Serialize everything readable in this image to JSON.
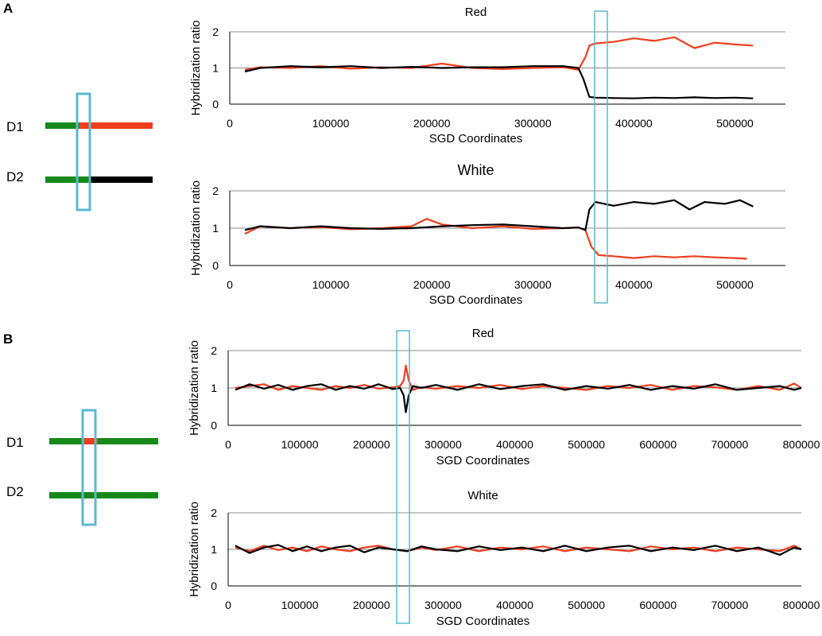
{
  "colors": {
    "red": "#ee3d1f",
    "black": "#000000",
    "green": "#17891b",
    "cyan": "#5bb8d0",
    "grid": "#8c8c8c",
    "axis": "#000000"
  },
  "panels": [
    {
      "letter": "A",
      "diagram": {
        "d1_label": "D1",
        "d2_label": "D2",
        "d1_segments": [
          {
            "color": "green",
            "from": 0.0,
            "to": 0.32
          },
          {
            "color": "red",
            "from": 0.32,
            "to": 1.0
          }
        ],
        "d2_segments": [
          {
            "color": "green",
            "from": 0.0,
            "to": 0.42
          },
          {
            "color": "black",
            "from": 0.42,
            "to": 1.0
          }
        ]
      }
    },
    {
      "letter": "B",
      "diagram": {
        "d1_label": "D1",
        "d2_label": "D2",
        "d1_segments": [
          {
            "color": "green",
            "from": 0.0,
            "to": 0.32
          },
          {
            "color": "red",
            "from": 0.32,
            "to": 0.44
          },
          {
            "color": "green",
            "from": 0.44,
            "to": 1.0
          }
        ],
        "d2_segments": [
          {
            "color": "green",
            "from": 0.0,
            "to": 1.0
          }
        ]
      }
    }
  ],
  "chart_data": [
    {
      "id": "A-red",
      "type": "line",
      "title": "Red",
      "xlabel": "SGD Coordinates",
      "ylabel": "Hybridization ratio",
      "xlim": [
        0,
        550000
      ],
      "ylim": [
        0,
        2
      ],
      "xticks": [
        0,
        100000,
        200000,
        300000,
        400000,
        500000
      ],
      "yticks": [
        0,
        1,
        2
      ],
      "grid": true,
      "breakpoint": 355000,
      "series": [
        {
          "color": "red",
          "x": [
            15000,
            30000,
            60000,
            90000,
            120000,
            150000,
            180000,
            210000,
            240000,
            270000,
            300000,
            330000,
            345000,
            352000,
            356000,
            362000,
            380000,
            400000,
            420000,
            440000,
            460000,
            480000,
            500000,
            518000
          ],
          "y": [
            0.95,
            1.02,
            1.0,
            1.05,
            0.98,
            1.02,
            1.0,
            1.12,
            1.0,
            0.97,
            1.0,
            1.02,
            0.95,
            1.3,
            1.62,
            1.68,
            1.72,
            1.82,
            1.75,
            1.85,
            1.55,
            1.7,
            1.65,
            1.62
          ]
        },
        {
          "color": "black",
          "x": [
            15000,
            30000,
            60000,
            90000,
            120000,
            150000,
            180000,
            210000,
            240000,
            270000,
            300000,
            330000,
            345000,
            350000,
            356000,
            362000,
            380000,
            400000,
            420000,
            440000,
            460000,
            480000,
            500000,
            518000
          ],
          "y": [
            0.9,
            1.0,
            1.05,
            1.02,
            1.05,
            1.0,
            1.03,
            1.0,
            1.02,
            1.02,
            1.05,
            1.05,
            1.0,
            0.7,
            0.2,
            0.18,
            0.17,
            0.16,
            0.18,
            0.17,
            0.19,
            0.17,
            0.18,
            0.16
          ]
        }
      ]
    },
    {
      "id": "A-white",
      "type": "line",
      "title": "White",
      "xlabel": "SGD Coordinates",
      "ylabel": "Hybridization ratio",
      "xlim": [
        0,
        550000
      ],
      "ylim": [
        0,
        2
      ],
      "xticks": [
        0,
        100000,
        200000,
        300000,
        400000,
        500000
      ],
      "yticks": [
        0,
        1,
        2
      ],
      "grid": true,
      "breakpoint": 355000,
      "series": [
        {
          "color": "red",
          "x": [
            15000,
            30000,
            60000,
            90000,
            120000,
            150000,
            180000,
            195000,
            210000,
            240000,
            270000,
            300000,
            330000,
            345000,
            352000,
            358000,
            365000,
            380000,
            400000,
            420000,
            440000,
            460000,
            480000,
            500000,
            512000
          ],
          "y": [
            0.85,
            1.05,
            1.0,
            1.03,
            0.97,
            1.0,
            1.05,
            1.25,
            1.1,
            1.0,
            1.05,
            0.98,
            1.0,
            1.02,
            0.95,
            0.5,
            0.28,
            0.25,
            0.2,
            0.25,
            0.22,
            0.25,
            0.22,
            0.2,
            0.18
          ]
        },
        {
          "color": "black",
          "x": [
            15000,
            30000,
            60000,
            90000,
            120000,
            150000,
            180000,
            210000,
            240000,
            270000,
            300000,
            330000,
            345000,
            352000,
            356000,
            362000,
            380000,
            400000,
            420000,
            440000,
            455000,
            470000,
            490000,
            505000,
            518000
          ],
          "y": [
            0.95,
            1.05,
            1.0,
            1.05,
            1.0,
            0.98,
            1.0,
            1.05,
            1.08,
            1.1,
            1.05,
            1.0,
            1.02,
            0.95,
            1.5,
            1.7,
            1.6,
            1.7,
            1.65,
            1.75,
            1.5,
            1.7,
            1.65,
            1.75,
            1.58
          ]
        }
      ]
    },
    {
      "id": "B-red",
      "type": "line",
      "title": "Red",
      "xlabel": "SGD Coordinates",
      "ylabel": "Hybridization ratio",
      "xlim": [
        0,
        800000
      ],
      "ylim": [
        0,
        2
      ],
      "xticks": [
        0,
        100000,
        200000,
        300000,
        400000,
        500000,
        600000,
        700000,
        800000
      ],
      "yticks": [
        0,
        1,
        2
      ],
      "grid": true,
      "breakpoint": 250000,
      "series": [
        {
          "color": "red",
          "x": [
            10000,
            30000,
            50000,
            70000,
            90000,
            110000,
            130000,
            150000,
            170000,
            190000,
            210000,
            230000,
            240000,
            245000,
            248000,
            252000,
            258000,
            270000,
            290000,
            320000,
            350000,
            380000,
            410000,
            440000,
            470000,
            500000,
            530000,
            560000,
            590000,
            620000,
            650000,
            680000,
            710000,
            740000,
            770000,
            790000,
            800000
          ],
          "y": [
            1.0,
            1.05,
            1.1,
            0.95,
            1.05,
            1.0,
            0.95,
            1.05,
            1.0,
            1.08,
            0.98,
            1.02,
            1.05,
            1.2,
            1.6,
            1.2,
            0.95,
            1.02,
            0.98,
            1.05,
            1.0,
            1.08,
            0.97,
            1.05,
            1.0,
            0.95,
            1.05,
            1.0,
            1.08,
            0.95,
            1.05,
            1.02,
            0.95,
            1.05,
            0.95,
            1.12,
            1.0
          ]
        },
        {
          "color": "black",
          "x": [
            10000,
            30000,
            50000,
            70000,
            90000,
            110000,
            130000,
            150000,
            170000,
            190000,
            210000,
            230000,
            240000,
            245000,
            248000,
            252000,
            258000,
            270000,
            290000,
            320000,
            350000,
            380000,
            410000,
            440000,
            470000,
            500000,
            530000,
            560000,
            590000,
            620000,
            650000,
            680000,
            710000,
            740000,
            770000,
            790000,
            800000
          ],
          "y": [
            0.95,
            1.1,
            0.98,
            1.08,
            0.95,
            1.05,
            1.1,
            0.95,
            1.05,
            0.98,
            1.1,
            0.97,
            1.0,
            0.8,
            0.35,
            0.8,
            1.05,
            1.0,
            1.08,
            0.95,
            1.1,
            0.97,
            1.05,
            1.1,
            0.95,
            1.05,
            0.98,
            1.08,
            0.95,
            1.05,
            0.98,
            1.1,
            0.95,
            1.0,
            1.05,
            0.95,
            1.0
          ]
        }
      ]
    },
    {
      "id": "B-white",
      "type": "line",
      "title": "White",
      "xlabel": "SGD Coordinates",
      "ylabel": "Hybridization ratio",
      "xlim": [
        0,
        800000
      ],
      "ylim": [
        0,
        2
      ],
      "xticks": [
        0,
        100000,
        200000,
        300000,
        400000,
        500000,
        600000,
        700000,
        800000
      ],
      "yticks": [
        0,
        1,
        2
      ],
      "grid": true,
      "breakpoint": 250000,
      "series": [
        {
          "color": "red",
          "x": [
            10000,
            30000,
            50000,
            70000,
            90000,
            110000,
            130000,
            150000,
            170000,
            190000,
            210000,
            230000,
            250000,
            270000,
            290000,
            320000,
            350000,
            380000,
            410000,
            440000,
            470000,
            500000,
            530000,
            560000,
            590000,
            620000,
            650000,
            680000,
            710000,
            740000,
            770000,
            790000,
            800000
          ],
          "y": [
            1.05,
            0.95,
            1.1,
            0.98,
            1.05,
            0.95,
            1.08,
            1.0,
            0.95,
            1.05,
            1.1,
            1.0,
            0.95,
            1.05,
            0.98,
            1.08,
            0.95,
            1.05,
            1.0,
            1.08,
            0.95,
            1.05,
            1.0,
            0.95,
            1.08,
            1.0,
            1.05,
            0.95,
            1.05,
            1.0,
            0.95,
            1.1,
            1.0
          ]
        },
        {
          "color": "black",
          "x": [
            10000,
            30000,
            50000,
            70000,
            90000,
            110000,
            130000,
            150000,
            170000,
            190000,
            210000,
            230000,
            250000,
            270000,
            290000,
            320000,
            350000,
            380000,
            410000,
            440000,
            470000,
            500000,
            530000,
            560000,
            590000,
            620000,
            650000,
            680000,
            710000,
            740000,
            770000,
            790000,
            800000
          ],
          "y": [
            1.1,
            0.9,
            1.05,
            1.12,
            0.95,
            1.08,
            0.95,
            1.05,
            1.1,
            0.92,
            1.05,
            1.0,
            0.95,
            1.08,
            1.0,
            0.95,
            1.08,
            0.98,
            1.05,
            0.95,
            1.1,
            0.95,
            1.05,
            1.1,
            0.95,
            1.05,
            0.98,
            1.1,
            0.95,
            1.05,
            0.85,
            1.05,
            1.0
          ]
        }
      ]
    }
  ]
}
